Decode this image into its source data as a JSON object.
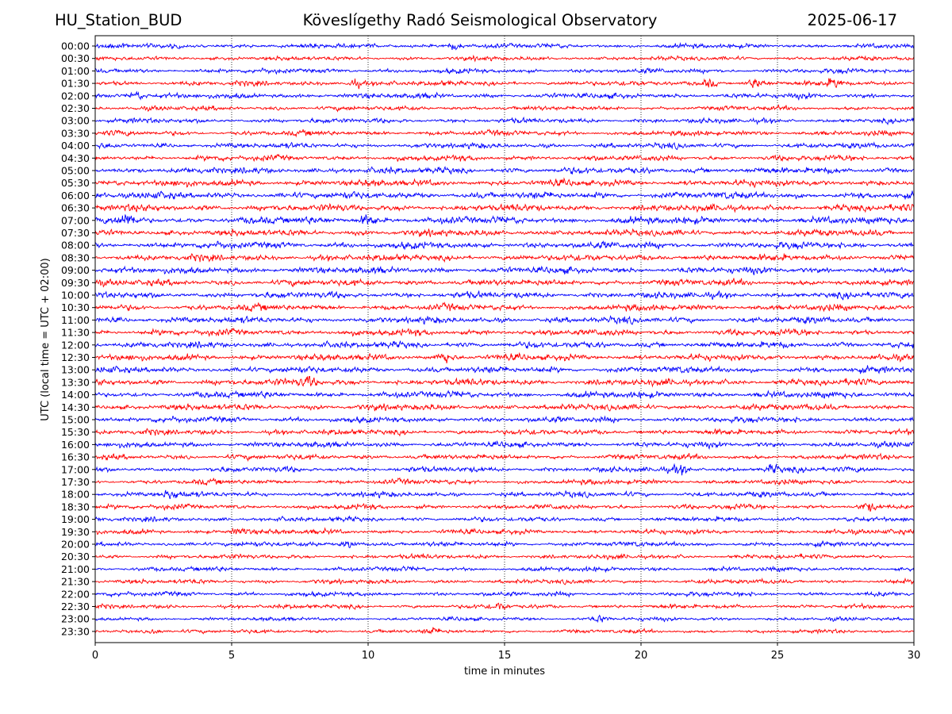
{
  "header": {
    "station": "HU_Station_BUD",
    "observatory": "Köveslígethy Radó Seismological Observatory",
    "date": "2025-06-17"
  },
  "chart_data": {
    "type": "line",
    "title": "Köveslígethy Radó Seismological Observatory",
    "xlabel": "time in minutes",
    "ylabel": "UTC (local time = UTC + 02:00)",
    "xlim": [
      0,
      30
    ],
    "x_ticks": [
      "0",
      "5",
      "10",
      "15",
      "20",
      "25",
      "30"
    ],
    "grid": "vertical dotted lines at 5-minute intervals",
    "row_colors": [
      "#0000ff",
      "#ff0000"
    ],
    "rows": [
      "00:00",
      "00:30",
      "01:00",
      "01:30",
      "02:00",
      "02:30",
      "03:00",
      "03:30",
      "04:00",
      "04:30",
      "05:00",
      "05:30",
      "06:00",
      "06:30",
      "07:00",
      "07:30",
      "08:00",
      "08:30",
      "09:00",
      "09:30",
      "10:00",
      "10:30",
      "11:00",
      "11:30",
      "12:00",
      "12:30",
      "13:00",
      "13:30",
      "14:00",
      "14:30",
      "15:00",
      "15:30",
      "16:00",
      "16:30",
      "17:00",
      "17:30",
      "18:00",
      "18:30",
      "19:00",
      "19:30",
      "20:00",
      "20:30",
      "21:00",
      "21:30",
      "22:00",
      "22:30",
      "23:00",
      "23:30"
    ],
    "relative_amplitude": [
      0.5,
      0.45,
      0.55,
      0.6,
      0.65,
      0.5,
      0.55,
      0.6,
      0.65,
      0.7,
      0.85,
      0.9,
      0.95,
      0.95,
      1.0,
      0.9,
      0.95,
      0.9,
      0.9,
      0.85,
      0.85,
      0.85,
      0.85,
      0.85,
      0.85,
      0.85,
      0.85,
      0.9,
      0.85,
      0.85,
      0.75,
      0.7,
      0.7,
      0.65,
      0.65,
      0.6,
      0.65,
      0.6,
      0.55,
      0.6,
      0.55,
      0.5,
      0.5,
      0.5,
      0.5,
      0.45,
      0.35,
      0.35
    ],
    "notable_events": [
      {
        "row": "00:00",
        "minute": 13.2
      },
      {
        "row": "01:30",
        "minute": 9.5
      },
      {
        "row": "01:30",
        "minute": 22.5
      },
      {
        "row": "01:30",
        "minute": 24.2
      },
      {
        "row": "01:30",
        "minute": 27.1
      },
      {
        "row": "02:00",
        "minute": 1.5
      },
      {
        "row": "07:00",
        "minute": 1.2
      },
      {
        "row": "07:00",
        "minute": 10.0
      },
      {
        "row": "12:30",
        "minute": 12.8
      },
      {
        "row": "13:30",
        "minute": 7.8
      },
      {
        "row": "17:00",
        "minute": 21.5
      },
      {
        "row": "17:00",
        "minute": 24.8
      },
      {
        "row": "18:00",
        "minute": 2.8
      },
      {
        "row": "18:30",
        "minute": 28.3
      },
      {
        "row": "19:30",
        "minute": 5.3
      },
      {
        "row": "20:00",
        "minute": 9.3
      },
      {
        "row": "22:30",
        "minute": 14.8
      },
      {
        "row": "23:00",
        "minute": 18.5
      },
      {
        "row": "23:30",
        "minute": 2.2
      },
      {
        "row": "23:30",
        "minute": 12.3
      }
    ]
  }
}
